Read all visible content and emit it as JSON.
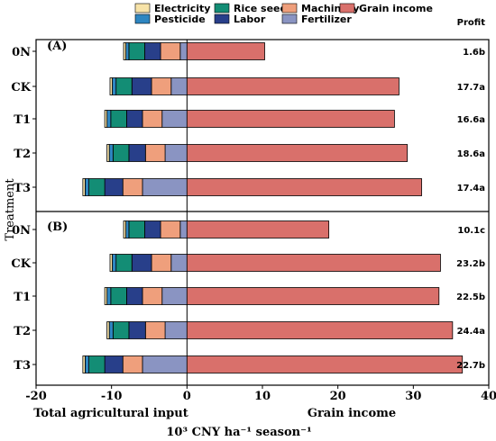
{
  "chart_data": {
    "type": "bar",
    "orientation": "horizontal-diverging",
    "ylabel": "Treatment",
    "xlabel_left": "Total agricultural input",
    "xlabel_right": "Grain income",
    "unit_label": "10³  CNY  ha⁻¹  season⁻¹",
    "profit_header": "Profit",
    "xlim": [
      -20,
      40
    ],
    "xticks": [
      -20,
      -10,
      0,
      10,
      20,
      30,
      40
    ],
    "xtick_labels": [
      "-20",
      "-10",
      "0",
      "10",
      "20",
      "30",
      "40"
    ],
    "categories": [
      "0N",
      "CK",
      "T1",
      "T2",
      "T3"
    ],
    "legend": [
      {
        "key": "electricity",
        "label": "Electricity",
        "color": "#f7e3a8"
      },
      {
        "key": "pesticide",
        "label": "Pesticide",
        "color": "#2e86c1"
      },
      {
        "key": "rice_seed",
        "label": "Rice seed",
        "color": "#138d75"
      },
      {
        "key": "labor",
        "label": "Labor",
        "color": "#283f8a"
      },
      {
        "key": "machinery",
        "label": "Machinery",
        "color": "#ef9f7c"
      },
      {
        "key": "fertilizer",
        "label": "Fertilizer",
        "color": "#8a94c2"
      },
      {
        "key": "grain_income",
        "label": "Grain income",
        "color": "#d9706b"
      }
    ],
    "panels": [
      {
        "label": "(A)",
        "rows": [
          {
            "treatment": "0N",
            "fertilizer": 0.9,
            "machinery": 2.6,
            "labor": 2.1,
            "rice_seed": 2.1,
            "pesticide": 0.4,
            "electricity": 0.3,
            "grain_income": 10.3,
            "profit": "1.6b"
          },
          {
            "treatment": "CK",
            "fertilizer": 2.1,
            "machinery": 2.6,
            "labor": 2.6,
            "rice_seed": 2.1,
            "pesticide": 0.5,
            "electricity": 0.3,
            "grain_income": 28.1,
            "profit": "17.7a"
          },
          {
            "treatment": "T1",
            "fertilizer": 3.3,
            "machinery": 2.6,
            "labor": 2.1,
            "rice_seed": 2.1,
            "pesticide": 0.5,
            "electricity": 0.3,
            "grain_income": 27.5,
            "profit": "16.6a"
          },
          {
            "treatment": "T2",
            "fertilizer": 2.9,
            "machinery": 2.6,
            "labor": 2.2,
            "rice_seed": 2.1,
            "pesticide": 0.5,
            "electricity": 0.3,
            "grain_income": 29.2,
            "profit": "18.6a"
          },
          {
            "treatment": "T3",
            "fertilizer": 5.9,
            "machinery": 2.6,
            "labor": 2.4,
            "rice_seed": 2.1,
            "pesticide": 0.5,
            "electricity": 0.3,
            "grain_income": 31.1,
            "profit": "17.4a"
          }
        ]
      },
      {
        "label": "(B)",
        "rows": [
          {
            "treatment": "0N",
            "fertilizer": 0.9,
            "machinery": 2.6,
            "labor": 2.1,
            "rice_seed": 2.1,
            "pesticide": 0.4,
            "electricity": 0.3,
            "grain_income": 18.8,
            "profit": "10.1c"
          },
          {
            "treatment": "CK",
            "fertilizer": 2.1,
            "machinery": 2.6,
            "labor": 2.6,
            "rice_seed": 2.1,
            "pesticide": 0.5,
            "electricity": 0.3,
            "grain_income": 33.6,
            "profit": "23.2b"
          },
          {
            "treatment": "T1",
            "fertilizer": 3.3,
            "machinery": 2.6,
            "labor": 2.1,
            "rice_seed": 2.1,
            "pesticide": 0.5,
            "electricity": 0.3,
            "grain_income": 33.4,
            "profit": "22.5b"
          },
          {
            "treatment": "T2",
            "fertilizer": 2.9,
            "machinery": 2.6,
            "labor": 2.2,
            "rice_seed": 2.1,
            "pesticide": 0.5,
            "electricity": 0.3,
            "grain_income": 35.2,
            "profit": "24.4a"
          },
          {
            "treatment": "T3",
            "fertilizer": 5.9,
            "machinery": 2.6,
            "labor": 2.4,
            "rice_seed": 2.1,
            "pesticide": 0.5,
            "electricity": 0.3,
            "grain_income": 36.5,
            "profit": "22.7b"
          }
        ]
      }
    ]
  }
}
